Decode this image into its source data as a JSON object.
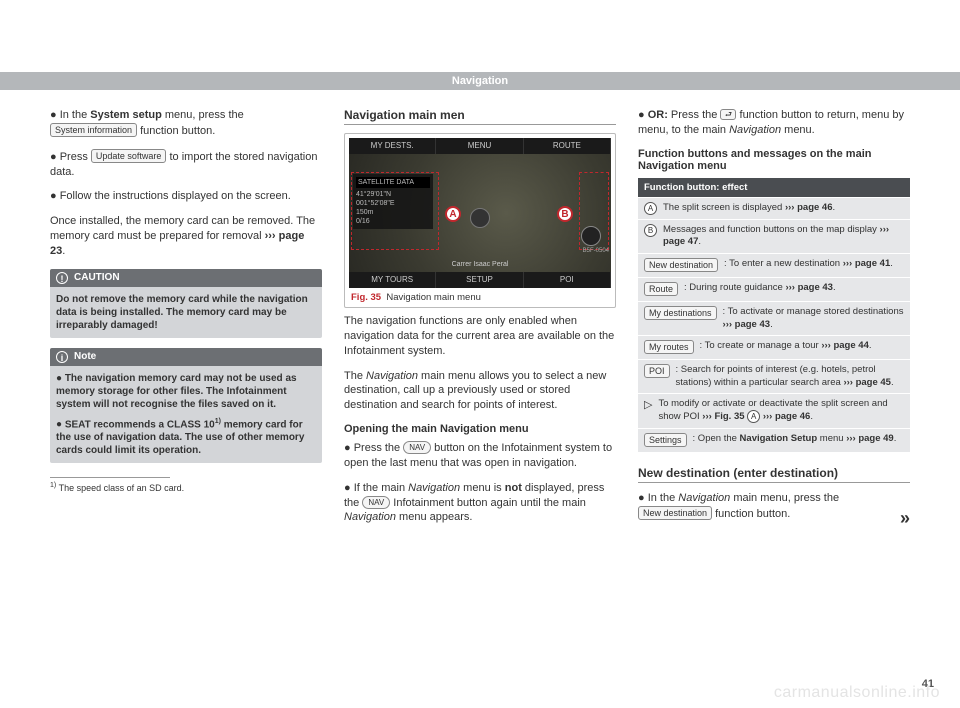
{
  "header": {
    "title": "Navigation"
  },
  "col1": {
    "p1_pre": "In the ",
    "p1_bold": "System setup",
    "p1_mid": " menu, press the ",
    "p1_btn": "System information",
    "p1_post": " function button.",
    "p2_pre": "Press ",
    "p2_btn": "Update software",
    "p2_post": " to import the stored navigation data.",
    "p3": "Follow the instructions displayed on the screen.",
    "p4_pre": "Once installed, the memory card can be removed. The memory card must be prepared for removal ",
    "p4_ref": "page 23",
    "p4_post": ".",
    "caution": {
      "title": "CAUTION",
      "body": "Do not remove the memory card while the navigation data is being installed. The memory card may be irreparably damaged!"
    },
    "note": {
      "title": "Note",
      "b1": "The navigation memory card may not be used as memory storage for other files. The Infotainment system will not recognise the files saved on it.",
      "b2_pre": "SEAT recommends a CLASS 10",
      "b2_sup": "1)",
      "b2_post": " memory card for the use of navigation data. The use of other memory cards could limit its operation."
    },
    "footnote": {
      "num": "1)",
      "text": " The speed class of an SD card."
    }
  },
  "col2": {
    "heading": "Navigation main men",
    "fig": {
      "top": {
        "a": "MY DESTS.",
        "b": "MENU",
        "c": "ROUTE"
      },
      "bot": {
        "a": "MY TOURS",
        "b": "SETUP",
        "c": "POI"
      },
      "panel": {
        "r0": "SATELLITE DATA",
        "r1": "41°29'01\"N",
        "r2": "001°52'08\"E",
        "r3": "150m",
        "r4": "0/16"
      },
      "street": "Carrer Isaac Peral",
      "code": "B5F-0504",
      "num": "Fig. 35",
      "caption": "Navigation main menu"
    },
    "p1": "The navigation functions are only enabled when navigation data for the current area are available on the Infotainment system.",
    "p2_pre": "The ",
    "p2_it": "Navigation",
    "p2_post": " main menu allows you to select a new destination, call up a previously used or stored destination and search for points of interest.",
    "subhead": "Opening the main Navigation menu",
    "p3_pre": "Press the ",
    "p3_btn": "NAV",
    "p3_post": " button on the Infotainment system to open the last menu that was open in navigation.",
    "p4_pre": "If the main ",
    "p4_it": "Navigation",
    "p4_mid": " menu is ",
    "p4_bold": "not",
    "p4_mid2": " displayed, press the ",
    "p4_btn": "NAV",
    "p4_mid3": " Infotainment button again until the main ",
    "p4_it2": "Navigation",
    "p4_post": " menu appears."
  },
  "col3": {
    "p1_bold": "OR:",
    "p1_pre": " Press the ",
    "p1_post": " function button to return, menu by menu, to the main ",
    "p1_it": "Navigation",
    "p1_end": " menu.",
    "subhead": "Function buttons and messages on the main Navigation menu",
    "table": {
      "head": "Function button: effect",
      "rows": [
        {
          "key_type": "circ",
          "key": "A",
          "desc_pre": "The split screen is displayed ",
          "ref": "page 46",
          "desc_post": "."
        },
        {
          "key_type": "circ",
          "key": "B",
          "desc_pre": "Messages and function buttons on the map display ",
          "ref": "page 47",
          "desc_post": "."
        },
        {
          "key_type": "btn",
          "key": "New destination",
          "desc_pre": ": To enter a new destination ",
          "ref": "page 41",
          "desc_post": "."
        },
        {
          "key_type": "btn",
          "key": "Route",
          "desc_pre": ": During route guidance ",
          "ref": "page 43",
          "desc_post": "."
        },
        {
          "key_type": "btn",
          "key": "My destinations",
          "desc_pre": ": To activate or manage stored destinations ",
          "ref": "page 43",
          "desc_post": "."
        },
        {
          "key_type": "btn",
          "key": "My routes",
          "desc_pre": ": To create or manage a tour ",
          "ref": "page 44",
          "desc_post": "."
        },
        {
          "key_type": "btn",
          "key": "POI",
          "desc_pre": ": Search for points of interest (e.g. hotels, petrol stations) within a particular search area ",
          "ref": "page 45",
          "desc_post": "."
        },
        {
          "key_type": "tri",
          "key": "",
          "desc_pre": "To modify or activate or deactivate the split screen and show POI ",
          "ref_fig": "Fig. 35",
          "ref_circ": "A",
          "ref": "page 46",
          "desc_post": "."
        },
        {
          "key_type": "btn",
          "key": "Settings",
          "desc_pre": ": Open the ",
          "desc_bold": "Navigation Setup",
          "desc_mid": " menu ",
          "ref": "page 49",
          "desc_post": "."
        }
      ]
    },
    "heading2": "New destination (enter destination)",
    "p2_pre": "In the ",
    "p2_it": "Navigation",
    "p2_mid": " main menu, press the ",
    "p2_btn": "New destination",
    "p2_post": " function button.",
    "continue": "»"
  },
  "pagenum": "41",
  "watermark": "carmanualsonline.info"
}
